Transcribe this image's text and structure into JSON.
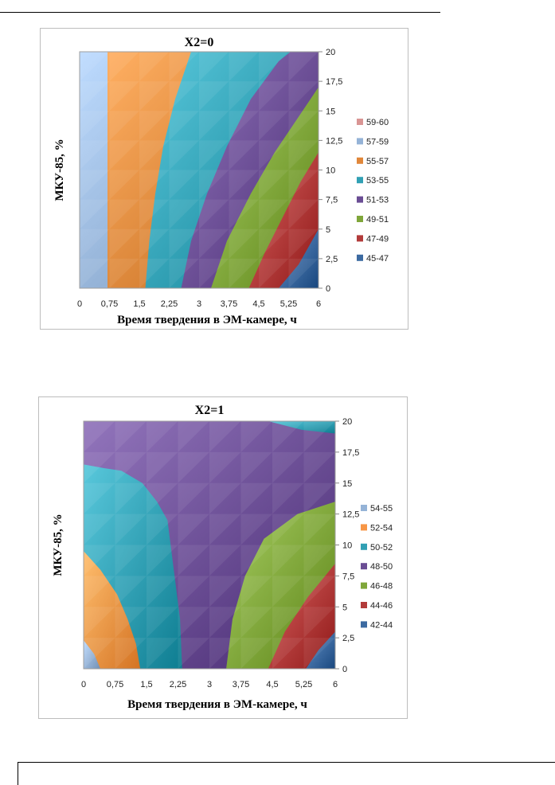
{
  "chart_data": [
    {
      "type": "contour",
      "title": "X2=0",
      "xlabel": "Время твердения в ЭМ-камере, ч",
      "ylabel": "МКУ-85, %",
      "x_ticks": [
        "0",
        "0,75",
        "1,5",
        "2,25",
        "3",
        "3,75",
        "4,5",
        "5,25",
        "6"
      ],
      "y_ticks": [
        "0",
        "2,5",
        "5",
        "7,5",
        "10",
        "12,5",
        "15",
        "17,5",
        "20"
      ],
      "xlim": [
        0,
        6
      ],
      "ylim": [
        0,
        20
      ],
      "legend_position": "right",
      "bands": [
        {
          "label": "59-60",
          "color": "#d99594"
        },
        {
          "label": "57-59",
          "color": "#95b3d7"
        },
        {
          "label": "55-57",
          "color": "#e0873a"
        },
        {
          "label": "53-55",
          "color": "#31a0b4"
        },
        {
          "label": "51-53",
          "color": "#6a4d94"
        },
        {
          "label": "49-51",
          "color": "#7fa63a"
        },
        {
          "label": "47-49",
          "color": "#b23b3a"
        },
        {
          "label": "45-47",
          "color": "#3c6aa1"
        }
      ],
      "boundaries": [
        {
          "level": 57,
          "points": [
            [
              0.7,
              0
            ],
            [
              0.7,
              20
            ]
          ]
        },
        {
          "level": 55,
          "points": [
            [
              1.65,
              0
            ],
            [
              1.75,
              4
            ],
            [
              1.9,
              8
            ],
            [
              2.1,
              12
            ],
            [
              2.4,
              16
            ],
            [
              2.8,
              20
            ]
          ]
        },
        {
          "level": 53,
          "points": [
            [
              2.55,
              0
            ],
            [
              2.8,
              4
            ],
            [
              3.2,
              8
            ],
            [
              3.7,
              12
            ],
            [
              4.3,
              16
            ],
            [
              5.0,
              19.2
            ],
            [
              5.3,
              20
            ]
          ]
        },
        {
          "level": 51,
          "points": [
            [
              3.3,
              0
            ],
            [
              3.7,
              4
            ],
            [
              4.3,
              8
            ],
            [
              4.9,
              11.5
            ],
            [
              5.6,
              15
            ],
            [
              6,
              17
            ]
          ]
        },
        {
          "level": 49,
          "points": [
            [
              4.25,
              0
            ],
            [
              4.65,
              3
            ],
            [
              5.1,
              6
            ],
            [
              5.55,
              9
            ],
            [
              6,
              11.5
            ]
          ]
        },
        {
          "level": 47,
          "points": [
            [
              5.0,
              0
            ],
            [
              5.5,
              2
            ],
            [
              6,
              5
            ]
          ]
        }
      ]
    },
    {
      "type": "contour",
      "title": "X2=1",
      "xlabel": "Время твердения в ЭМ-камере, ч",
      "ylabel": "МКУ-85, %",
      "x_ticks": [
        "0",
        "0,75",
        "1,5",
        "2,25",
        "3",
        "3,75",
        "4,5",
        "5,25",
        "6"
      ],
      "y_ticks": [
        "0",
        "2,5",
        "5",
        "7,5",
        "10",
        "12,5",
        "15",
        "17,5",
        "20"
      ],
      "xlim": [
        0,
        6
      ],
      "ylim": [
        0,
        20
      ],
      "legend_position": "right",
      "bands": [
        {
          "label": "54-55",
          "color": "#95b3d7"
        },
        {
          "label": "52-54",
          "color": "#f79646"
        },
        {
          "label": "50-52",
          "color": "#31a0b4"
        },
        {
          "label": "48-50",
          "color": "#6a4d94"
        },
        {
          "label": "46-48",
          "color": "#7fa63a"
        },
        {
          "label": "44-46",
          "color": "#b23b3a"
        },
        {
          "label": "42-44",
          "color": "#3c6aa1"
        }
      ],
      "boundaries": [
        {
          "level": 54,
          "points": [
            [
              0,
              2.3
            ],
            [
              0.25,
              1.2
            ],
            [
              0.4,
              0
            ]
          ]
        },
        {
          "level": 52,
          "points": [
            [
              0,
              9.5
            ],
            [
              0.4,
              8
            ],
            [
              0.8,
              6
            ],
            [
              1.05,
              4
            ],
            [
              1.25,
              2
            ],
            [
              1.35,
              0
            ]
          ]
        },
        {
          "level": 50,
          "points": [
            [
              0,
              16.5
            ],
            [
              0.5,
              16.2
            ],
            [
              0.9,
              16
            ],
            [
              1.4,
              15
            ],
            [
              1.75,
              13.5
            ],
            [
              2.0,
              12
            ],
            [
              2.15,
              8
            ],
            [
              2.3,
              4
            ],
            [
              2.35,
              0
            ]
          ]
        },
        {
          "level": 48,
          "points": [
            [
              3.4,
              0
            ],
            [
              3.55,
              4
            ],
            [
              3.85,
              7.5
            ],
            [
              4.3,
              10.5
            ],
            [
              5.1,
              12.5
            ],
            [
              6,
              13.5
            ]
          ]
        },
        {
          "level": 46,
          "points": [
            [
              4.4,
              0
            ],
            [
              4.8,
              3
            ],
            [
              5.35,
              5.8
            ],
            [
              6,
              8.5
            ]
          ]
        },
        {
          "level": 44,
          "points": [
            [
              5.3,
              0
            ],
            [
              5.6,
              1.5
            ],
            [
              6,
              3
            ]
          ]
        },
        {
          "level": 50,
          "points": [
            [
              4.4,
              20
            ],
            [
              5.2,
              19.3
            ],
            [
              6,
              19
            ]
          ]
        }
      ]
    }
  ]
}
